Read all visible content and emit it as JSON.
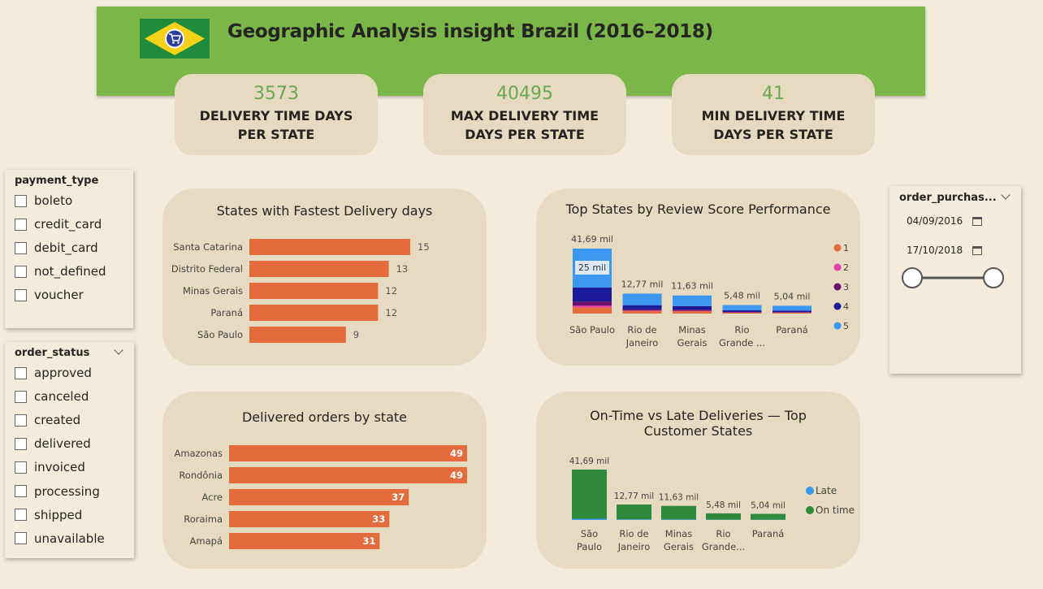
{
  "header": {
    "title": "Geographic Analysis insight Brazil (2016–2018)"
  },
  "kpis": [
    {
      "value": "3573",
      "label_line1": "DELIVERY TIME DAYS",
      "label_line2": "PER STATE"
    },
    {
      "value": "40495",
      "label_line1": "MAX DELIVERY TIME",
      "label_line2": "DAYS PER STATE"
    },
    {
      "value": "41",
      "label_line1": "MIN DELIVERY TIME",
      "label_line2": "DAYS PER STATE"
    }
  ],
  "payment_slicer": {
    "title": "payment_type",
    "items": [
      "boleto",
      "credit_card",
      "debit_card",
      "not_defined",
      "voucher"
    ]
  },
  "status_slicer": {
    "title": "order_status",
    "items": [
      "approved",
      "canceled",
      "created",
      "delivered",
      "invoiced",
      "processing",
      "shipped",
      "unavailable"
    ]
  },
  "date_slicer": {
    "title": "order_purchas...",
    "start": "04/09/2016",
    "end": "17/10/2018"
  },
  "colors": {
    "bar": "#e46c3c",
    "on_time": "#2f8a3c",
    "late": "#3b97f0",
    "review_1": "#e46c3c",
    "review_2": "#e040a8",
    "review_3": "#6a0f6a",
    "review_4": "#1a1a9a",
    "review_5": "#3b97f0",
    "kpi_value": "#6aa84f",
    "header": "#7ab648"
  },
  "chart_data": [
    {
      "type": "bar",
      "orientation": "horizontal",
      "title": "States with Fastest Delivery days",
      "categories": [
        "Santa Catarina",
        "Distrito Federal",
        "Minas Gerais",
        "Paraná",
        "São Paulo"
      ],
      "values": [
        15,
        13,
        12,
        12,
        9
      ],
      "xlim": [
        0,
        15
      ]
    },
    {
      "type": "bar",
      "stacked": true,
      "title": "Top States by Review Score Performance",
      "categories": [
        "São Paulo",
        "Rio de Janeiro",
        "Minas Gerais",
        "Rio Grande ...",
        "Paraná"
      ],
      "category_lines": [
        [
          "São Paulo"
        ],
        [
          "Rio de",
          "Janeiro"
        ],
        [
          "Minas",
          "Gerais"
        ],
        [
          "Rio",
          "Grande ..."
        ],
        [
          "Paraná"
        ]
      ],
      "totals": [
        41.69,
        12.77,
        11.63,
        5.48,
        5.04
      ],
      "total_labels": [
        "41,69 mil",
        "12,77 mil",
        "11,63 mil",
        "5,48 mil",
        "5,04 mil"
      ],
      "series": [
        {
          "name": "1",
          "values": [
            4.0,
            1.6,
            1.5,
            0.6,
            0.5
          ]
        },
        {
          "name": "2",
          "values": [
            1.2,
            0.4,
            0.3,
            0.15,
            0.15
          ]
        },
        {
          "name": "3",
          "values": [
            2.5,
            0.8,
            0.7,
            0.3,
            0.3
          ]
        },
        {
          "name": "4",
          "values": [
            9.0,
            2.6,
            2.3,
            1.1,
            1.0
          ]
        },
        {
          "name": "5",
          "values": [
            25.0,
            7.4,
            6.8,
            3.3,
            3.1
          ]
        }
      ],
      "data_label": "25 mil",
      "legend_position": "right"
    },
    {
      "type": "bar",
      "orientation": "horizontal",
      "title": "Delivered orders by state",
      "categories": [
        "Amazonas",
        "Rondônia",
        "Acre",
        "Roraima",
        "Amapá"
      ],
      "values": [
        49,
        49,
        37,
        33,
        31
      ],
      "xlim": [
        0,
        49
      ]
    },
    {
      "type": "bar",
      "stacked": true,
      "title": "On-Time vs Late Deliveries — Top Customer States",
      "categories": [
        "São Paulo",
        "Rio de Janeiro",
        "Minas Gerais",
        "Rio Grande...",
        "Paraná"
      ],
      "category_lines": [
        [
          "São",
          "Paulo"
        ],
        [
          "Rio de",
          "Janeiro"
        ],
        [
          "Minas",
          "Gerais"
        ],
        [
          "Rio",
          "Grande..."
        ],
        [
          "Paraná"
        ]
      ],
      "total_labels": [
        "41,69 mil",
        "12,77 mil",
        "11,63 mil",
        "5,48 mil",
        "5,04 mil"
      ],
      "series": [
        {
          "name": "Late",
          "values": [
            1.0,
            0.5,
            0.4,
            0.2,
            0.2
          ]
        },
        {
          "name": "On time",
          "values": [
            40.69,
            12.27,
            11.23,
            5.28,
            4.84
          ]
        }
      ],
      "legend_position": "right"
    }
  ]
}
